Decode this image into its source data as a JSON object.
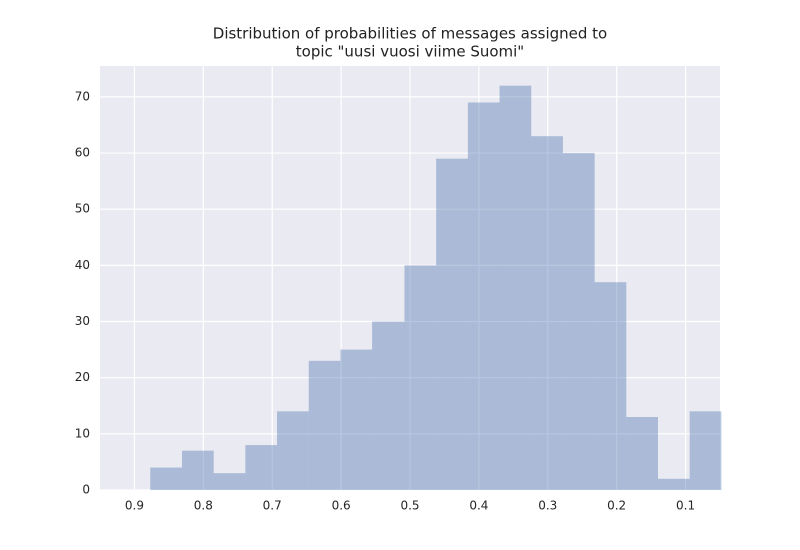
{
  "chart_data": {
    "type": "histogram",
    "title": [
      "Distribution of probabilities of messages assigned to",
      "topic \"uusi vuosi viime Suomi\""
    ],
    "bins": [
      0.048,
      0.094,
      0.14,
      0.186,
      0.232,
      0.278,
      0.324,
      0.37,
      0.416,
      0.462,
      0.508,
      0.555,
      0.601,
      0.647,
      0.693,
      0.739,
      0.785,
      0.831,
      0.877
    ],
    "values": [
      14,
      2,
      13,
      37,
      60,
      63,
      72,
      69,
      59,
      40,
      30,
      25,
      23,
      14,
      8,
      3,
      7,
      4
    ],
    "color": "#4c72b0",
    "xlim": [
      0.95,
      0.05
    ],
    "xticks": [
      0.9,
      0.8,
      0.7,
      0.6,
      0.5,
      0.4,
      0.3,
      0.2,
      0.1
    ],
    "ylim": [
      0,
      75.5
    ],
    "yticks": [
      0,
      10,
      20,
      30,
      40,
      50,
      60,
      70
    ],
    "grid": true
  }
}
